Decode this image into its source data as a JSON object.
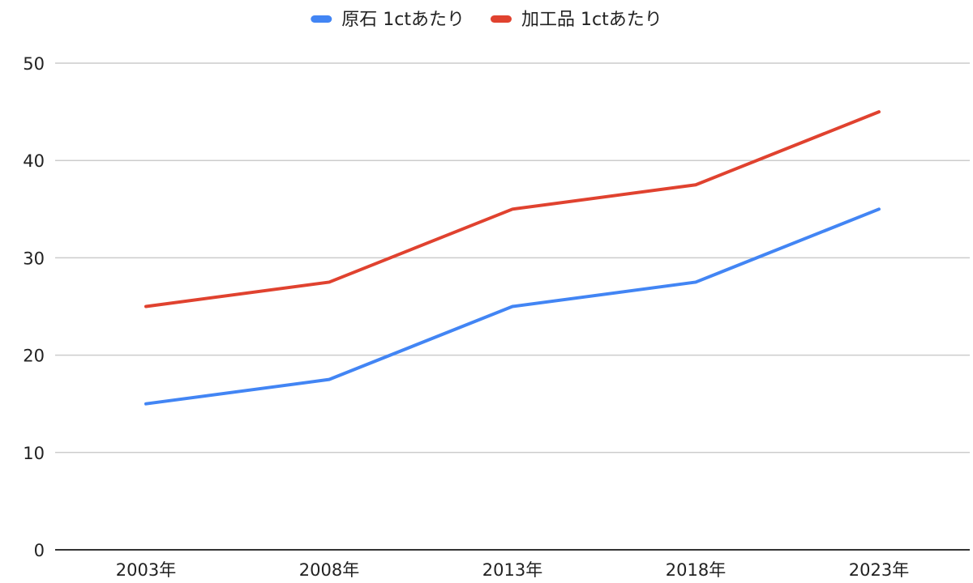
{
  "chart_data": {
    "type": "line",
    "title": "",
    "xlabel": "",
    "ylabel": "",
    "categories": [
      "2003年",
      "2008年",
      "2013年",
      "2018年",
      "2023年"
    ],
    "series": [
      {
        "name": "原石 1ctあたり",
        "color": "#4285f4",
        "values": [
          15,
          17.5,
          25,
          27.5,
          35
        ]
      },
      {
        "name": "加工品 1ctあたり",
        "color": "#e0422f",
        "values": [
          25,
          27.5,
          35,
          37.5,
          45
        ]
      }
    ],
    "ylim": [
      0,
      50
    ],
    "yticks": [
      0,
      10,
      20,
      30,
      40,
      50
    ],
    "grid": true,
    "legend": "top-center"
  }
}
